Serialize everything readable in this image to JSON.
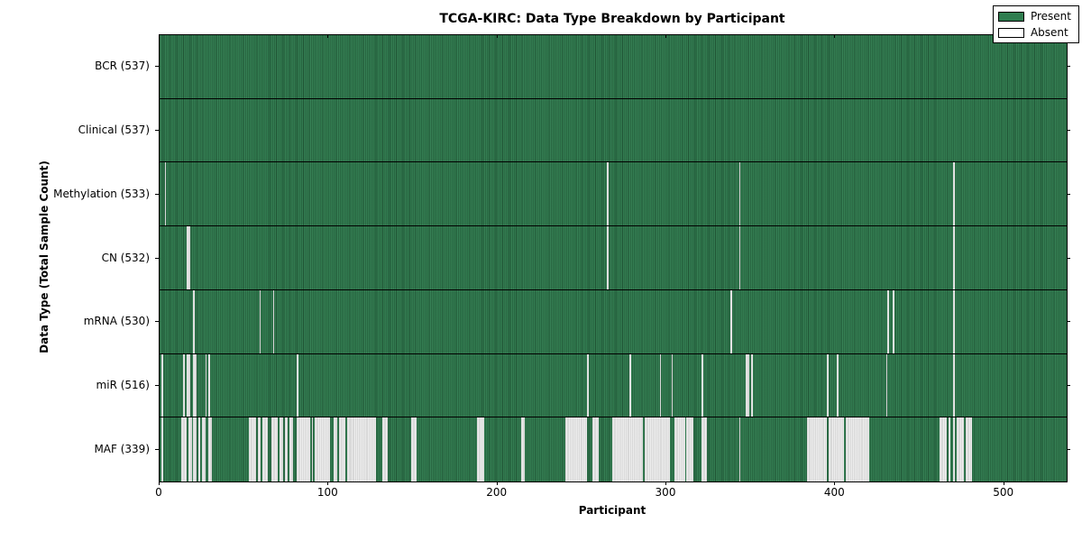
{
  "title": "TCGA-KIRC: Data Type Breakdown by Participant",
  "legend": {
    "present_label": "Present",
    "absent_label": "Absent"
  },
  "colors": {
    "present": "#2f7d4f",
    "absent": "#ffffff",
    "edge": "#000000"
  },
  "chart_data": {
    "type": "heatmap",
    "title": "TCGA-KIRC: Data Type Breakdown by Participant",
    "xlabel": "Participant",
    "ylabel": "Data Type (Total Sample Count)",
    "xlim": [
      0,
      537
    ],
    "x_ticks": [
      0,
      100,
      200,
      300,
      400,
      500
    ],
    "total_participants": 537,
    "grid": false,
    "legend_position": "upper right",
    "legend": [
      {
        "label": "Present",
        "color": "#2f7d4f"
      },
      {
        "label": "Absent",
        "color": "#ffffff"
      }
    ],
    "rows": [
      {
        "name": "BCR",
        "label": "BCR (537)",
        "present_count": 537,
        "absent_runs": []
      },
      {
        "name": "Clinical",
        "label": "Clinical (537)",
        "present_count": 537,
        "absent_runs": []
      },
      {
        "name": "Methylation",
        "label": "Methylation (533)",
        "present_count": 533,
        "absent_runs": [
          [
            3,
            1
          ],
          [
            265,
            1
          ],
          [
            343,
            1
          ],
          [
            470,
            1
          ]
        ]
      },
      {
        "name": "CN",
        "label": "CN (532)",
        "present_count": 532,
        "absent_runs": [
          [
            16,
            2
          ],
          [
            265,
            1
          ],
          [
            343,
            1
          ],
          [
            470,
            1
          ]
        ]
      },
      {
        "name": "mRNA",
        "label": "mRNA (530)",
        "present_count": 530,
        "absent_runs": [
          [
            20,
            1
          ],
          [
            59,
            1
          ],
          [
            67,
            1
          ],
          [
            338,
            1
          ],
          [
            431,
            1
          ],
          [
            434,
            1
          ],
          [
            470,
            1
          ]
        ]
      },
      {
        "name": "miR",
        "label": "miR (516)",
        "present_count": 516,
        "absent_runs": [
          [
            1,
            1
          ],
          [
            14,
            1
          ],
          [
            16,
            2
          ],
          [
            20,
            2
          ],
          [
            27,
            1
          ],
          [
            29,
            1
          ],
          [
            81,
            1
          ],
          [
            253,
            1
          ],
          [
            278,
            1
          ],
          [
            296,
            1
          ],
          [
            303,
            1
          ],
          [
            321,
            1
          ],
          [
            347,
            2
          ],
          [
            350,
            1
          ],
          [
            395,
            1
          ],
          [
            401,
            1
          ],
          [
            430,
            1
          ],
          [
            470,
            1
          ]
        ]
      },
      {
        "name": "MAF",
        "label": "MAF (339)",
        "present_count": 339,
        "absent_runs": [
          [
            1,
            1
          ],
          [
            13,
            3
          ],
          [
            17,
            2
          ],
          [
            20,
            2
          ],
          [
            23,
            1
          ],
          [
            25,
            2
          ],
          [
            29,
            2
          ],
          [
            53,
            4
          ],
          [
            58,
            2
          ],
          [
            61,
            3
          ],
          [
            66,
            4
          ],
          [
            71,
            2
          ],
          [
            74,
            2
          ],
          [
            77,
            2
          ],
          [
            81,
            8
          ],
          [
            90,
            1
          ],
          [
            92,
            9
          ],
          [
            103,
            2
          ],
          [
            106,
            4
          ],
          [
            111,
            2
          ],
          [
            113,
            8
          ],
          [
            121,
            7
          ],
          [
            132,
            3
          ],
          [
            149,
            3
          ],
          [
            188,
            4
          ],
          [
            214,
            2
          ],
          [
            240,
            13
          ],
          [
            256,
            4
          ],
          [
            268,
            18
          ],
          [
            287,
            15
          ],
          [
            305,
            6
          ],
          [
            312,
            4
          ],
          [
            321,
            3
          ],
          [
            343,
            1
          ],
          [
            383,
            12
          ],
          [
            396,
            9
          ],
          [
            406,
            14
          ],
          [
            462,
            4
          ],
          [
            467,
            1
          ],
          [
            470,
            1
          ],
          [
            472,
            4
          ],
          [
            477,
            4
          ]
        ]
      }
    ]
  }
}
